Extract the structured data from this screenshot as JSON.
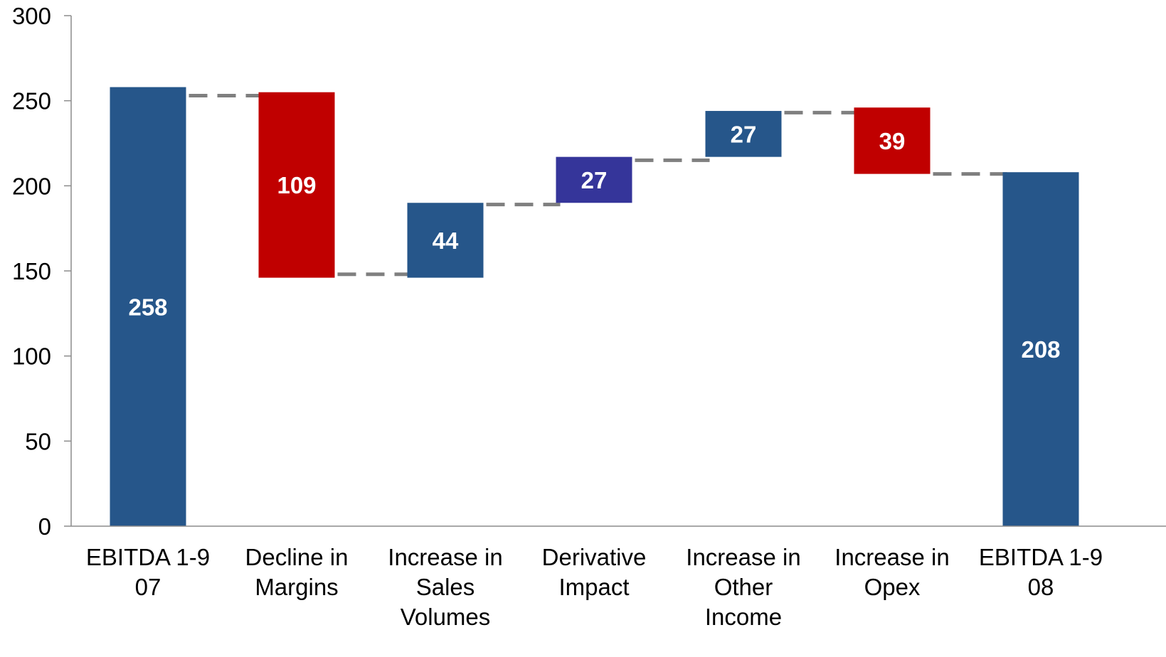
{
  "chart_data": {
    "type": "bar",
    "subtype": "waterfall",
    "title": "",
    "xlabel": "",
    "ylabel": "",
    "ylim": [
      0,
      300
    ],
    "yticks": [
      "0",
      "50",
      "100",
      "150",
      "200",
      "250",
      "300"
    ],
    "grid": false,
    "legend": "none",
    "connectors": "dashed",
    "categories": [
      [
        "EBITDA 1-9",
        "07"
      ],
      [
        "Decline in",
        "Margins"
      ],
      [
        "Increase in",
        "Sales",
        "Volumes"
      ],
      [
        "Derivative",
        "Impact"
      ],
      [
        "Increase in",
        "Other",
        "Income"
      ],
      [
        "Increase in",
        "Opex"
      ],
      [
        "EBITDA 1-9",
        "08"
      ]
    ],
    "bars": [
      {
        "kind": "total",
        "base": 0,
        "top": 258,
        "label": "258",
        "color": "#26568a"
      },
      {
        "kind": "decrease",
        "base": 146,
        "top": 255,
        "label": "109",
        "color": "#c00000"
      },
      {
        "kind": "increase",
        "base": 146,
        "top": 190,
        "label": "44",
        "color": "#26568a"
      },
      {
        "kind": "increase",
        "base": 190,
        "top": 217,
        "label": "27",
        "color": "#35359a"
      },
      {
        "kind": "increase",
        "base": 217,
        "top": 244,
        "label": "27",
        "color": "#26568a"
      },
      {
        "kind": "decrease",
        "base": 207,
        "top": 246,
        "label": "39",
        "color": "#c00000"
      },
      {
        "kind": "total",
        "base": 0,
        "top": 208,
        "label": "208",
        "color": "#26568a"
      }
    ],
    "connector_levels": [
      253,
      148,
      189,
      215,
      243,
      207
    ]
  }
}
